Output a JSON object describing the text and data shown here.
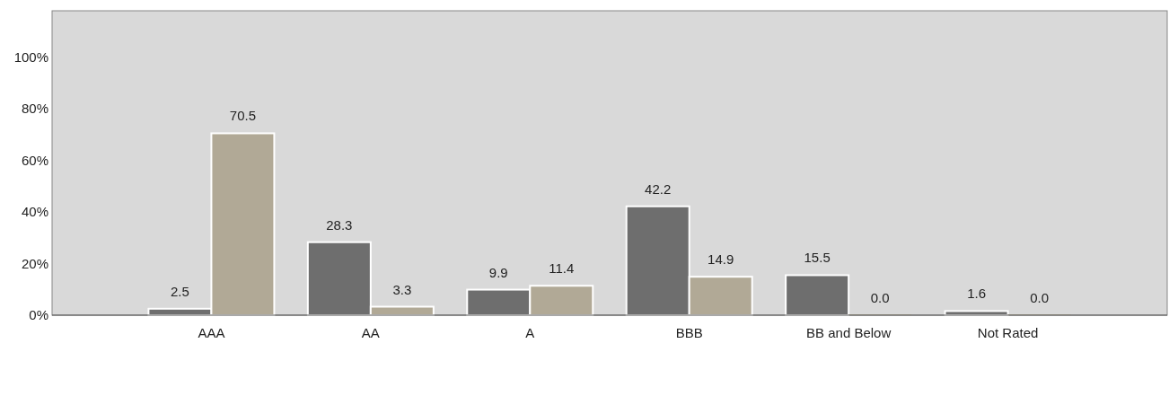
{
  "chart_data": {
    "type": "bar",
    "categories": [
      "AAA",
      "AA",
      "A",
      "BBB",
      "BB and Below",
      "Not Rated"
    ],
    "series": [
      {
        "color": "#6e6e6e",
        "values": [
          2.5,
          28.3,
          9.9,
          42.2,
          15.5,
          1.6
        ],
        "value_labels": [
          "2.5",
          "28.3",
          "9.9",
          "42.2",
          "15.5",
          "1.6"
        ]
      },
      {
        "color": "#b1a996",
        "values": [
          70.5,
          3.3,
          11.4,
          14.9,
          0,
          0
        ],
        "value_labels": [
          "70.5",
          "3.3",
          "11.4",
          "14.9",
          "0.0",
          "0.0"
        ]
      }
    ],
    "ylim": [
      0,
      118
    ],
    "yticks": [
      {
        "value": 0,
        "label": "0%"
      },
      {
        "value": 20,
        "label": "20%"
      },
      {
        "value": 40,
        "label": "40%"
      },
      {
        "value": 60,
        "label": "60%"
      },
      {
        "value": 80,
        "label": "80%"
      },
      {
        "value": 100,
        "label": "100%"
      }
    ],
    "grid": false,
    "legend": false
  }
}
